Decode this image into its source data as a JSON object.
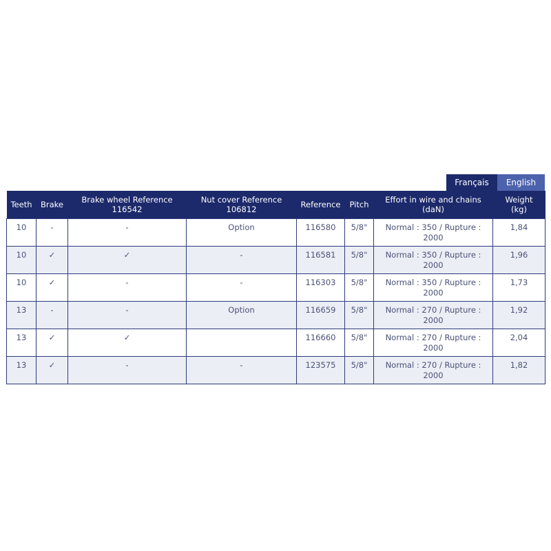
{
  "language_tabs": [
    {
      "label": "Français",
      "active": true
    },
    {
      "label": "English",
      "active": false
    }
  ],
  "colors": {
    "header": "#1c2a6b",
    "english_tab": "#4d62ad",
    "alt_row": "#eceef6"
  },
  "table": {
    "headers": [
      {
        "line1": "Teeth",
        "line2": ""
      },
      {
        "line1": "Brake",
        "line2": ""
      },
      {
        "line1": "Brake wheel Reference",
        "line2": "116542"
      },
      {
        "line1": "Nut cover Reference",
        "line2": "106812"
      },
      {
        "line1": "Reference",
        "line2": ""
      },
      {
        "line1": "Pitch",
        "line2": ""
      },
      {
        "line1": "Effort in wire and chains",
        "line2": "(daN)"
      },
      {
        "line1": "Weight",
        "line2": "(kg)"
      }
    ],
    "rows": [
      [
        "10",
        "-",
        "-",
        "Option",
        "116580",
        "5/8\"",
        "Normal : 350 / Rupture : 2000",
        "1,84"
      ],
      [
        "10",
        "✓",
        "✓",
        "-",
        "116581",
        "5/8\"",
        "Normal : 350 / Rupture : 2000",
        "1,96"
      ],
      [
        "10",
        "✓",
        "-",
        "-",
        "116303",
        "5/8\"",
        "Normal : 350 / Rupture : 2000",
        "1,73"
      ],
      [
        "13",
        "-",
        "-",
        "Option",
        "116659",
        "5/8\"",
        "Normal : 270 / Rupture : 2000",
        "1,92"
      ],
      [
        "13",
        "✓",
        "✓",
        "",
        "116660",
        "5/8\"",
        "Normal : 270 / Rupture : 2000",
        "2,04"
      ],
      [
        "13",
        "✓",
        "-",
        "-",
        "123575",
        "5/8\"",
        "Normal : 270 / Rupture : 2000",
        "1,82"
      ]
    ]
  }
}
